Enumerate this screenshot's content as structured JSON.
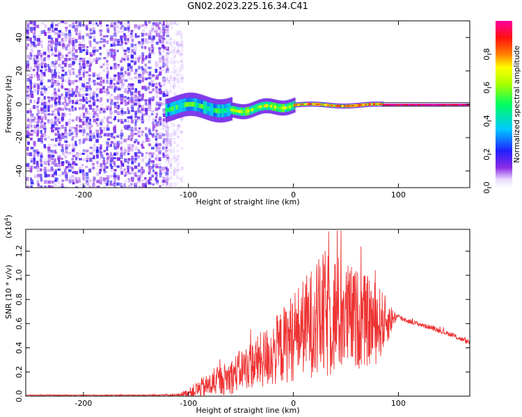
{
  "title": "GN02.2023.225.16.34.C41",
  "chart_data": [
    {
      "type": "heatmap",
      "xlabel": "Height of straight line (km)",
      "ylabel": "Frequency (Hz)",
      "xlim": [
        -255,
        168
      ],
      "ylim": [
        -50,
        50
      ],
      "xticks": [
        -200,
        -100,
        0,
        100
      ],
      "yticks": [
        -40,
        -20,
        0,
        20,
        40
      ],
      "colorbar": {
        "label": "Normalized spectral amplitude",
        "range": [
          0,
          1
        ],
        "ticks": [
          0.0,
          0.2,
          0.4,
          0.6,
          0.8
        ]
      },
      "regions": [
        {
          "x_range": [
            -255,
            -122
          ],
          "freq_range": [
            -50,
            50
          ],
          "amplitude": 0.15
        },
        {
          "x_range": [
            -122,
            -108
          ],
          "freq_range": [
            -50,
            50
          ],
          "amplitude": 0.05
        },
        {
          "x_range": [
            -122,
            -60
          ],
          "freq_range": [
            -8,
            6
          ],
          "amplitude": 0.35
        },
        {
          "x_range": [
            -60,
            0
          ],
          "freq_range": [
            -5,
            4
          ],
          "amplitude": 0.5
        },
        {
          "x_range": [
            0,
            85
          ],
          "freq_range": [
            -2,
            1
          ],
          "amplitude": 0.7
        },
        {
          "x_range": [
            85,
            168
          ],
          "freq_range": [
            -1,
            0.5
          ],
          "amplitude": 0.9
        }
      ]
    },
    {
      "type": "line",
      "xlabel": "Height of straight line (km)",
      "ylabel": "SNR (10 * v/v)",
      "y_multiplier": "(x10",
      "y_multiplier_exp": "4",
      "y_multiplier_close": ")",
      "xlim": [
        -255,
        168
      ],
      "ylim": [
        0,
        1.38
      ],
      "xticks": [
        -200,
        -100,
        0,
        100
      ],
      "yticks": [
        0.0,
        0.2,
        0.4,
        0.6,
        0.8,
        1.0,
        1.2
      ],
      "series": [
        {
          "color": "#ee3333",
          "x": [
            -255,
            -200,
            -150,
            -110,
            -100,
            -90,
            -80,
            -70,
            -60,
            -50,
            -40,
            -30,
            -20,
            -10,
            0,
            10,
            20,
            30,
            40,
            50,
            60,
            70,
            80,
            90,
            98,
            110,
            130,
            150,
            168
          ],
          "y": [
            0.008,
            0.008,
            0.008,
            0.01,
            0.03,
            0.06,
            0.09,
            0.13,
            0.16,
            0.22,
            0.26,
            0.3,
            0.35,
            0.42,
            0.5,
            0.58,
            0.62,
            0.66,
            0.68,
            0.66,
            0.64,
            0.62,
            0.6,
            0.62,
            0.66,
            0.62,
            0.57,
            0.51,
            0.44
          ],
          "spread": [
            0.004,
            0.004,
            0.004,
            0.01,
            0.03,
            0.08,
            0.1,
            0.12,
            0.15,
            0.17,
            0.2,
            0.24,
            0.28,
            0.32,
            0.38,
            0.4,
            0.48,
            0.55,
            0.52,
            0.46,
            0.42,
            0.38,
            0.34,
            0.18,
            0.03,
            0.02,
            0.02,
            0.02,
            0.02
          ]
        }
      ]
    }
  ]
}
